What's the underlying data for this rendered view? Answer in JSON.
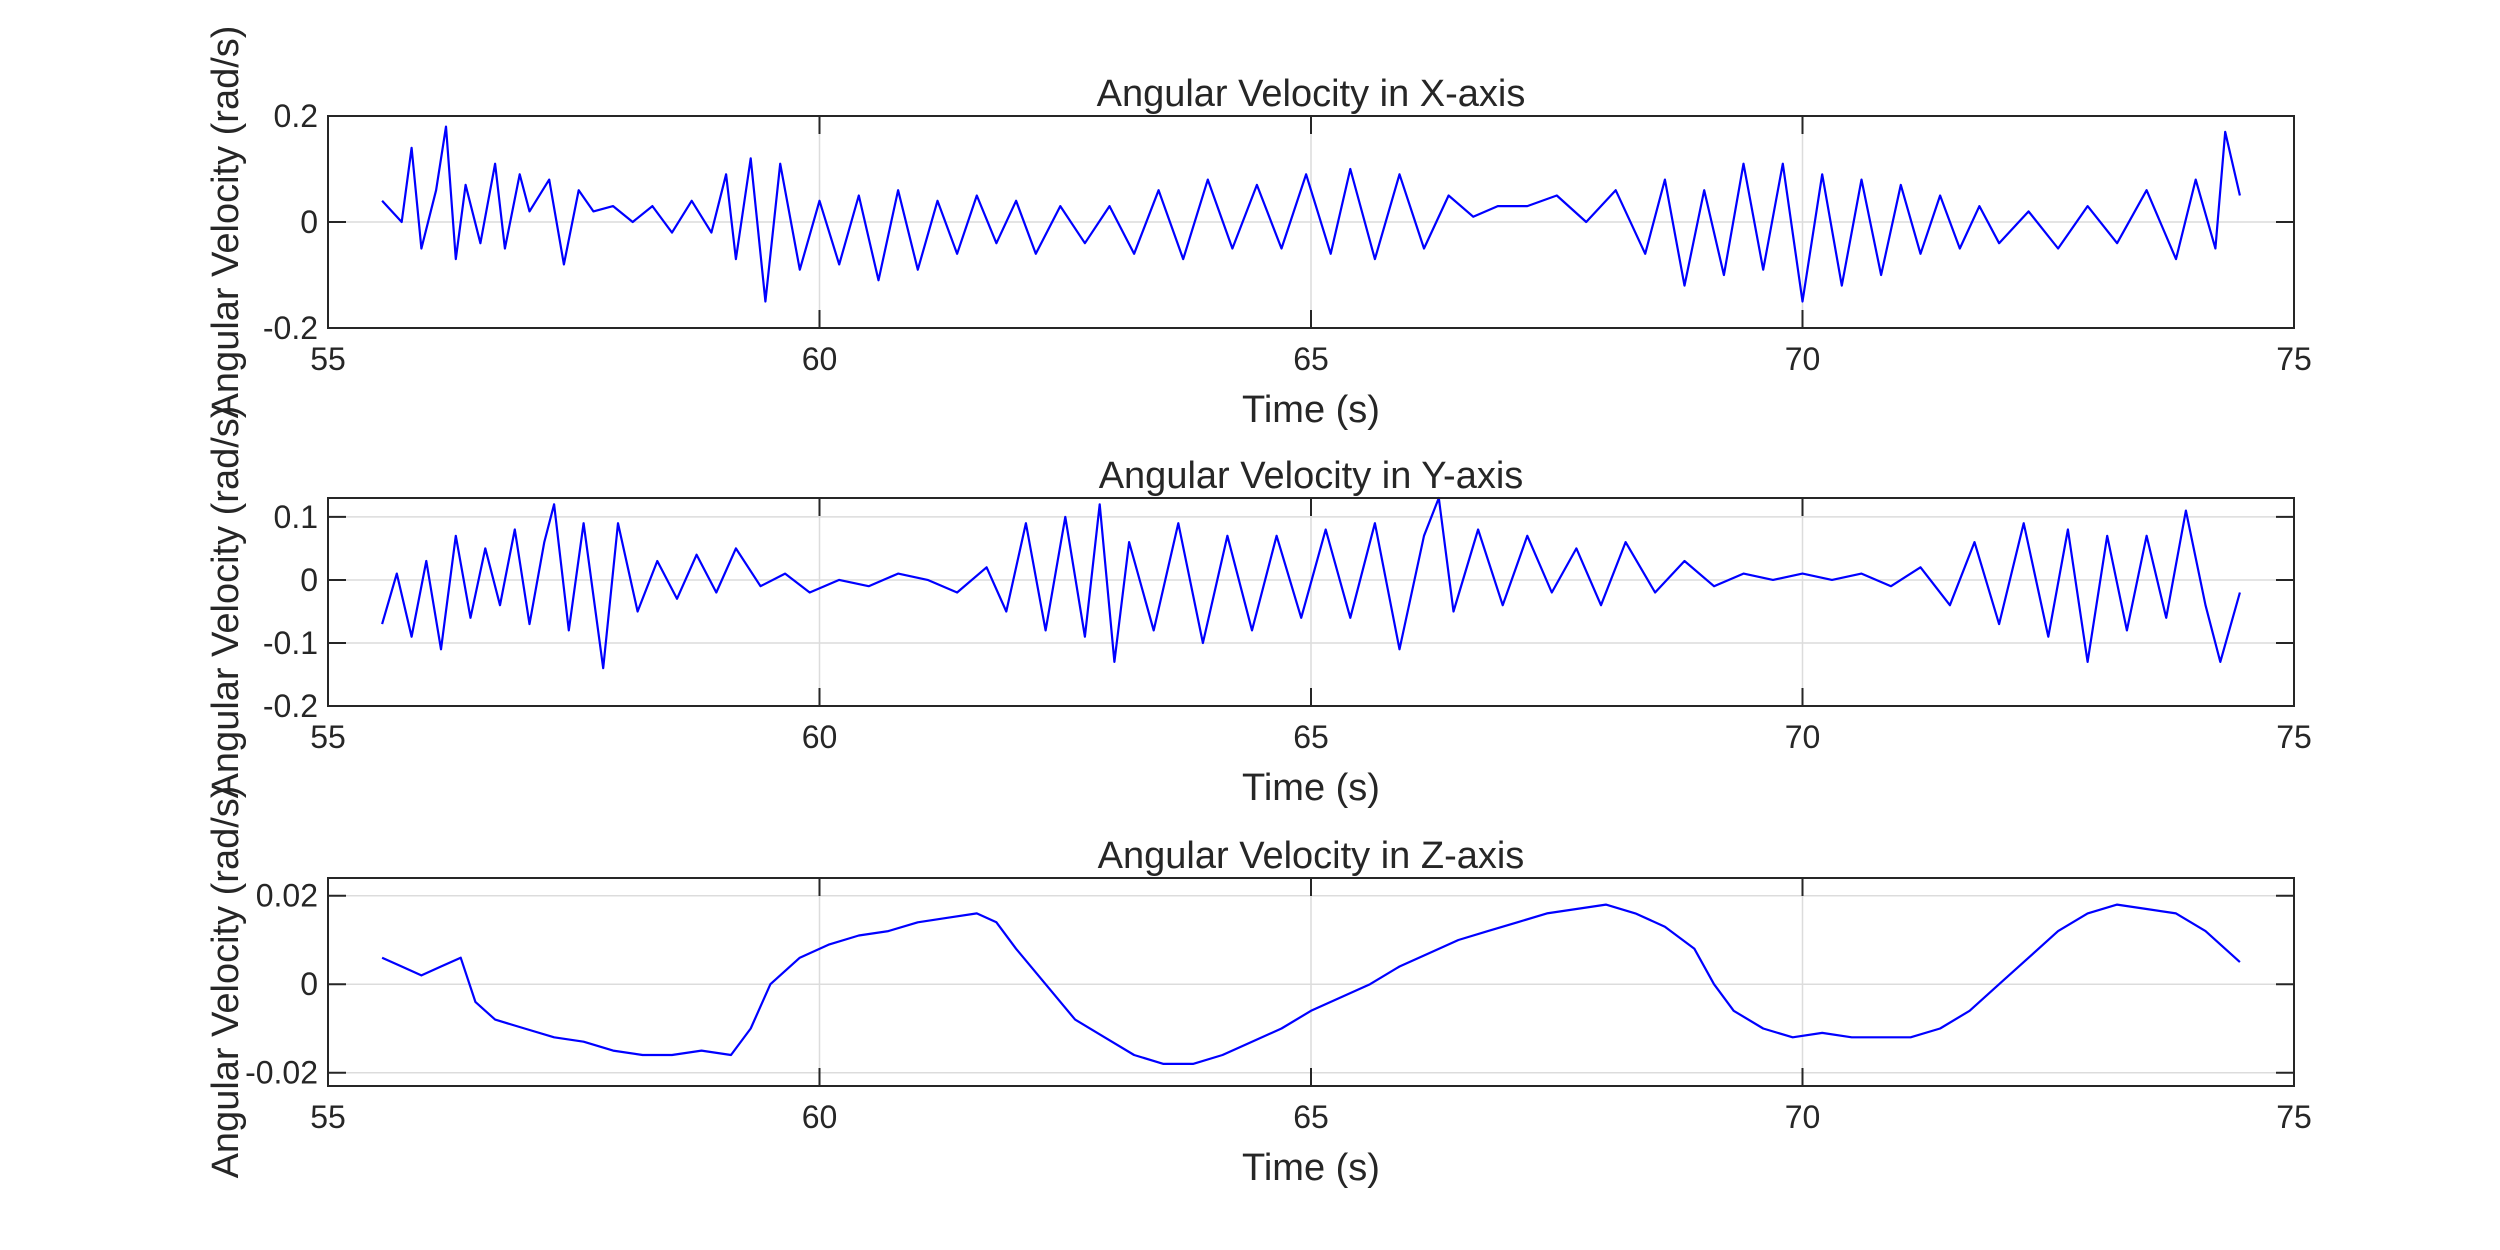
{
  "chart_data": [
    {
      "type": "line",
      "title": "Angular Velocity in X-axis",
      "xlabel": "Time (s)",
      "ylabel": "Angular Velocity (rad/s)",
      "xlim": [
        55,
        75
      ],
      "ylim": [
        -0.2,
        0.2
      ],
      "xticks": [
        55,
        60,
        65,
        70,
        75
      ],
      "yticks": [
        -0.2,
        0,
        0.2
      ],
      "xtick_labels": [
        "55",
        "60",
        "65",
        "70",
        "75"
      ],
      "ytick_labels": [
        "-0.2",
        "0",
        "0.2"
      ],
      "grid": true,
      "color": "#0000ff",
      "series": [
        {
          "x": [
            55.55,
            55.75,
            55.85,
            55.95,
            56.1,
            56.2,
            56.3,
            56.4,
            56.55,
            56.7,
            56.8,
            56.95,
            57.05,
            57.25,
            57.4,
            57.55,
            57.7,
            57.9,
            58.1,
            58.3,
            58.5,
            58.7,
            58.9,
            59.05,
            59.15,
            59.3,
            59.45,
            59.6,
            59.8,
            60.0,
            60.2,
            60.4,
            60.6,
            60.8,
            61.0,
            61.2,
            61.4,
            61.6,
            61.8,
            62.0,
            62.2,
            62.45,
            62.7,
            62.95,
            63.2,
            63.45,
            63.7,
            63.95,
            64.2,
            64.45,
            64.7,
            64.95,
            65.2,
            65.4,
            65.65,
            65.9,
            66.15,
            66.4,
            66.65,
            66.9,
            67.2,
            67.5,
            67.8,
            68.1,
            68.4,
            68.6,
            68.8,
            69.0,
            69.2,
            69.4,
            69.6,
            69.8,
            70.0,
            70.2,
            70.4,
            70.6,
            70.8,
            71.0,
            71.2,
            71.4,
            71.6,
            71.8,
            72.0,
            72.3,
            72.6,
            72.9,
            73.2,
            73.5,
            73.8,
            74.0,
            74.2,
            74.3,
            74.45
          ],
          "y": [
            0.04,
            0.0,
            0.14,
            -0.05,
            0.06,
            0.18,
            -0.07,
            0.07,
            -0.04,
            0.11,
            -0.05,
            0.09,
            0.02,
            0.08,
            -0.08,
            0.06,
            0.02,
            0.03,
            0.0,
            0.03,
            -0.02,
            0.04,
            -0.02,
            0.09,
            -0.07,
            0.12,
            -0.15,
            0.11,
            -0.09,
            0.04,
            -0.08,
            0.05,
            -0.11,
            0.06,
            -0.09,
            0.04,
            -0.06,
            0.05,
            -0.04,
            0.04,
            -0.06,
            0.03,
            -0.04,
            0.03,
            -0.06,
            0.06,
            -0.07,
            0.08,
            -0.05,
            0.07,
            -0.05,
            0.09,
            -0.06,
            0.1,
            -0.07,
            0.09,
            -0.05,
            0.05,
            0.01,
            0.03,
            0.03,
            0.05,
            0.0,
            0.06,
            -0.06,
            0.08,
            -0.12,
            0.06,
            -0.1,
            0.11,
            -0.09,
            0.11,
            -0.15,
            0.09,
            -0.12,
            0.08,
            -0.1,
            0.07,
            -0.06,
            0.05,
            -0.05,
            0.03,
            -0.04,
            0.02,
            -0.05,
            0.03,
            -0.04,
            0.06,
            -0.07,
            0.08,
            -0.05,
            0.17,
            0.05
          ]
        }
      ]
    },
    {
      "type": "line",
      "title": "Angular Velocity in Y-axis",
      "xlabel": "Time (s)",
      "ylabel": "Angular Velocity (rad/s)",
      "xlim": [
        55,
        75
      ],
      "ylim": [
        -0.2,
        0.13
      ],
      "xticks": [
        55,
        60,
        65,
        70,
        75
      ],
      "yticks": [
        -0.2,
        -0.1,
        0,
        0.1
      ],
      "xtick_labels": [
        "55",
        "60",
        "65",
        "70",
        "75"
      ],
      "ytick_labels": [
        "-0.2",
        "-0.1",
        "0",
        "0.1"
      ],
      "grid": true,
      "color": "#0000ff",
      "series": [
        {
          "x": [
            55.55,
            55.7,
            55.85,
            56.0,
            56.15,
            56.3,
            56.45,
            56.6,
            56.75,
            56.9,
            57.05,
            57.2,
            57.3,
            57.45,
            57.6,
            57.8,
            57.95,
            58.15,
            58.35,
            58.55,
            58.75,
            58.95,
            59.15,
            59.4,
            59.65,
            59.9,
            60.2,
            60.5,
            60.8,
            61.1,
            61.4,
            61.7,
            61.9,
            62.1,
            62.3,
            62.5,
            62.7,
            62.85,
            63.0,
            63.15,
            63.4,
            63.65,
            63.9,
            64.15,
            64.4,
            64.65,
            64.9,
            65.15,
            65.4,
            65.65,
            65.9,
            66.15,
            66.3,
            66.45,
            66.7,
            66.95,
            67.2,
            67.45,
            67.7,
            67.95,
            68.2,
            68.5,
            68.8,
            69.1,
            69.4,
            69.7,
            70.0,
            70.3,
            70.6,
            70.9,
            71.2,
            71.5,
            71.75,
            72.0,
            72.25,
            72.5,
            72.7,
            72.9,
            73.1,
            73.3,
            73.5,
            73.7,
            73.9,
            74.1,
            74.25,
            74.45
          ],
          "y": [
            -0.07,
            0.01,
            -0.09,
            0.03,
            -0.11,
            0.07,
            -0.06,
            0.05,
            -0.04,
            0.08,
            -0.07,
            0.06,
            0.12,
            -0.08,
            0.09,
            -0.14,
            0.09,
            -0.05,
            0.03,
            -0.03,
            0.04,
            -0.02,
            0.05,
            -0.01,
            0.01,
            -0.02,
            0.0,
            -0.01,
            0.01,
            0.0,
            -0.02,
            0.02,
            -0.05,
            0.09,
            -0.08,
            0.1,
            -0.09,
            0.12,
            -0.13,
            0.06,
            -0.08,
            0.09,
            -0.1,
            0.07,
            -0.08,
            0.07,
            -0.06,
            0.08,
            -0.06,
            0.09,
            -0.11,
            0.07,
            0.13,
            -0.05,
            0.08,
            -0.04,
            0.07,
            -0.02,
            0.05,
            -0.04,
            0.06,
            -0.02,
            0.03,
            -0.01,
            0.01,
            0.0,
            0.01,
            0.0,
            0.01,
            -0.01,
            0.02,
            -0.04,
            0.06,
            -0.07,
            0.09,
            -0.09,
            0.08,
            -0.13,
            0.07,
            -0.08,
            0.07,
            -0.06,
            0.11,
            -0.04,
            -0.13,
            -0.02
          ]
        }
      ]
    },
    {
      "type": "line",
      "title": "Angular Velocity in Z-axis",
      "xlabel": "Time (s)",
      "ylabel": "Angular Velocity (rad/s)",
      "xlim": [
        55,
        75
      ],
      "ylim": [
        -0.023,
        0.024
      ],
      "xticks": [
        55,
        60,
        65,
        70,
        75
      ],
      "yticks": [
        -0.02,
        0,
        0.02
      ],
      "xtick_labels": [
        "55",
        "60",
        "65",
        "70",
        "75"
      ],
      "ytick_labels": [
        "-0.02",
        "0",
        "0.02"
      ],
      "grid": true,
      "color": "#0000ff",
      "series": [
        {
          "x": [
            55.55,
            55.75,
            55.95,
            56.15,
            56.35,
            56.5,
            56.7,
            57.0,
            57.3,
            57.6,
            57.9,
            58.2,
            58.5,
            58.8,
            59.1,
            59.3,
            59.5,
            59.8,
            60.1,
            60.4,
            60.7,
            61.0,
            61.3,
            61.6,
            61.8,
            62.0,
            62.3,
            62.6,
            62.9,
            63.2,
            63.5,
            63.8,
            64.1,
            64.4,
            64.7,
            65.0,
            65.3,
            65.6,
            65.9,
            66.2,
            66.5,
            66.8,
            67.1,
            67.4,
            67.7,
            68.0,
            68.3,
            68.6,
            68.9,
            69.1,
            69.3,
            69.6,
            69.9,
            70.2,
            70.5,
            70.8,
            71.1,
            71.4,
            71.7,
            72.0,
            72.3,
            72.6,
            72.9,
            73.2,
            73.5,
            73.8,
            74.1,
            74.3,
            74.45
          ],
          "y": [
            0.006,
            0.004,
            0.002,
            0.004,
            0.006,
            -0.004,
            -0.008,
            -0.01,
            -0.012,
            -0.013,
            -0.015,
            -0.016,
            -0.016,
            -0.015,
            -0.016,
            -0.01,
            0.0,
            0.006,
            0.009,
            0.011,
            0.012,
            0.014,
            0.015,
            0.016,
            0.014,
            0.008,
            0.0,
            -0.008,
            -0.012,
            -0.016,
            -0.018,
            -0.018,
            -0.016,
            -0.013,
            -0.01,
            -0.006,
            -0.003,
            0.0,
            0.004,
            0.007,
            0.01,
            0.012,
            0.014,
            0.016,
            0.017,
            0.018,
            0.016,
            0.013,
            0.008,
            0.0,
            -0.006,
            -0.01,
            -0.012,
            -0.011,
            -0.012,
            -0.012,
            -0.012,
            -0.01,
            -0.006,
            0.0,
            0.006,
            0.012,
            0.016,
            0.018,
            0.017,
            0.016,
            0.012,
            0.008,
            0.005
          ]
        }
      ]
    }
  ]
}
